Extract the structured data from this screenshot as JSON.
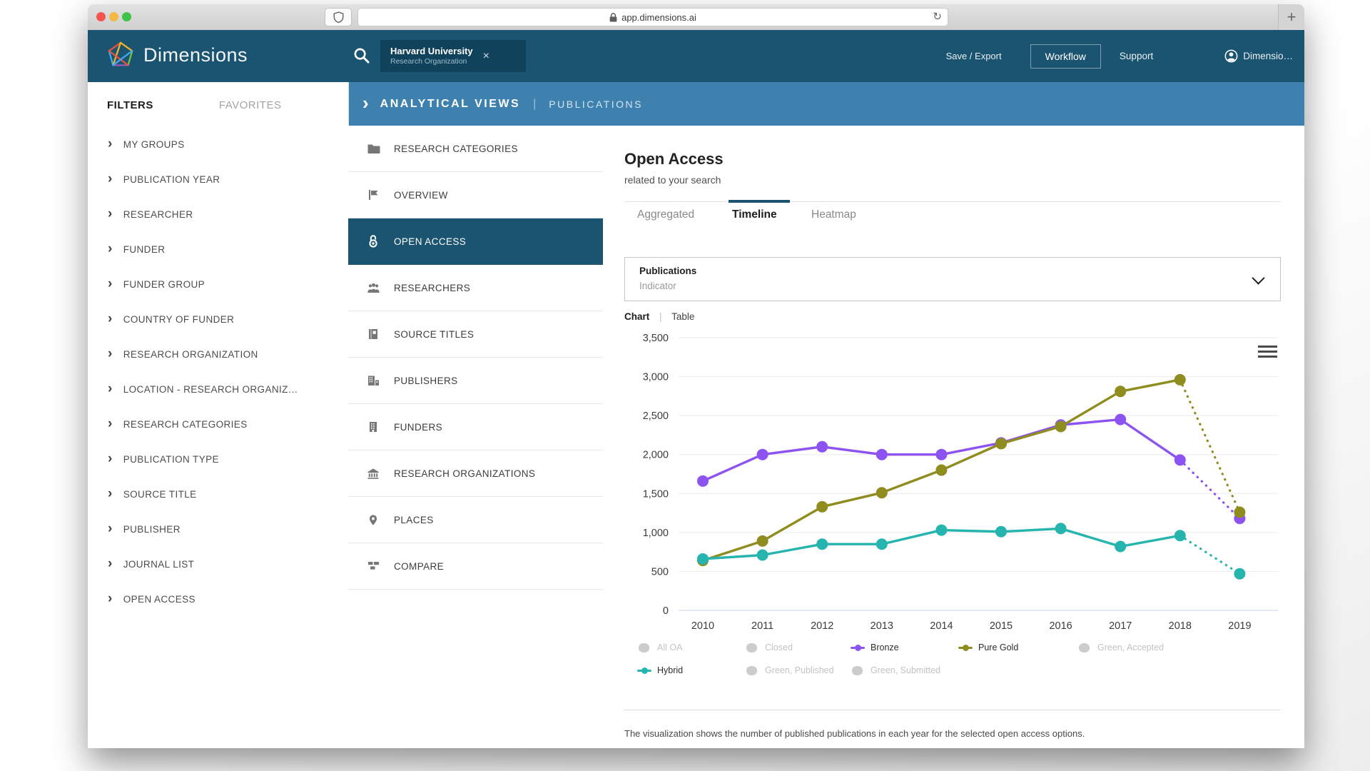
{
  "browser": {
    "url": "app.dimensions.ai",
    "new_tab_label": "+",
    "reload_glyph": "↻"
  },
  "header": {
    "brand": "Dimensions",
    "search_pill": {
      "title": "Harvard University",
      "subtitle": "Research Organization",
      "close_glyph": "×"
    },
    "save_export": "Save / Export",
    "workflow": "Workflow",
    "support": "Support",
    "user": "Dimensio…",
    "colors": {
      "header_bg": "#1b5470",
      "pill_bg": "#11425c"
    }
  },
  "breadcrumb": {
    "chevron": "›",
    "section": "ANALYTICAL VIEWS",
    "separator": "|",
    "page": "PUBLICATIONS",
    "bar_color": "#3e81ae"
  },
  "sidebar": {
    "tabs": [
      "FILTERS",
      "FAVORITES"
    ],
    "items": [
      "MY GROUPS",
      "PUBLICATION YEAR",
      "RESEARCHER",
      "FUNDER",
      "FUNDER GROUP",
      "COUNTRY OF FUNDER",
      "RESEARCH ORGANIZATION",
      "LOCATION - RESEARCH ORGANIZ…",
      "RESEARCH CATEGORIES",
      "PUBLICATION TYPE",
      "SOURCE TITLE",
      "PUBLISHER",
      "JOURNAL LIST",
      "OPEN ACCESS"
    ],
    "item_chevron": "›"
  },
  "views_menu": {
    "items": [
      "RESEARCH CATEGORIES",
      "OVERVIEW",
      "OPEN ACCESS",
      "RESEARCHERS",
      "SOURCE TITLES",
      "PUBLISHERS",
      "FUNDERS",
      "RESEARCH ORGANIZATIONS",
      "PLACES",
      "COMPARE"
    ],
    "icons": [
      "folder-icon",
      "flag-icon",
      "open-access-icon",
      "researchers-icon",
      "journal-icon",
      "publishers-icon",
      "funders-icon",
      "bank-icon",
      "map-pin-icon",
      "compare-icon"
    ],
    "selected": "OPEN ACCESS",
    "selected_bg": "#1b5470"
  },
  "main": {
    "title": "Open Access",
    "subtitle": "related to your search",
    "tabs": [
      "Aggregated",
      "Timeline",
      "Heatmap"
    ],
    "active_tab": "Timeline",
    "indicator_box": {
      "value": "Publications",
      "label": "Indicator"
    },
    "display_toggle": {
      "chart": "Chart",
      "separator": "|",
      "table": "Table",
      "active": "Chart"
    },
    "footer_note": "The visualization shows the number of published publications in each year for the selected open access options."
  },
  "chart_data": {
    "type": "line",
    "x": [
      2010,
      2011,
      2012,
      2013,
      2014,
      2015,
      2016,
      2017,
      2018,
      2019
    ],
    "ylim": [
      0,
      3500
    ],
    "ytick_values": [
      0,
      500,
      1000,
      1500,
      2000,
      2500,
      3000,
      3500
    ],
    "yticks": [
      "0",
      "500",
      "1,000",
      "1,500",
      "2,000",
      "2,500",
      "3,000",
      "3,500"
    ],
    "grid": true,
    "legend_position": "bottom",
    "last_segment_dotted": true,
    "series": [
      {
        "name": "Bronze",
        "color": "#8d53f0",
        "values": [
          1660,
          2000,
          2100,
          2000,
          2000,
          2150,
          2380,
          2450,
          1930,
          1180
        ]
      },
      {
        "name": "Pure Gold",
        "color": "#8f8d20",
        "values": [
          640,
          890,
          1330,
          1510,
          1800,
          2140,
          2360,
          2810,
          2960,
          1260
        ]
      },
      {
        "name": "Hybrid",
        "color": "#26b4ae",
        "values": [
          660,
          710,
          850,
          850,
          1030,
          1010,
          1050,
          820,
          960,
          470
        ]
      }
    ],
    "legend": [
      {
        "label": "All OA",
        "active": false,
        "color": "#cccccc"
      },
      {
        "label": "Closed",
        "active": false,
        "color": "#cccccc"
      },
      {
        "label": "Bronze",
        "active": true,
        "color": "#8d53f0"
      },
      {
        "label": "Pure Gold",
        "active": true,
        "color": "#8f8d20"
      },
      {
        "label": "Green, Accepted",
        "active": false,
        "color": "#cccccc"
      },
      {
        "label": "Hybrid",
        "active": true,
        "color": "#26b4ae"
      },
      {
        "label": "Green, Published",
        "active": false,
        "color": "#cccccc"
      },
      {
        "label": "Green, Submitted",
        "active": false,
        "color": "#cccccc"
      }
    ]
  }
}
